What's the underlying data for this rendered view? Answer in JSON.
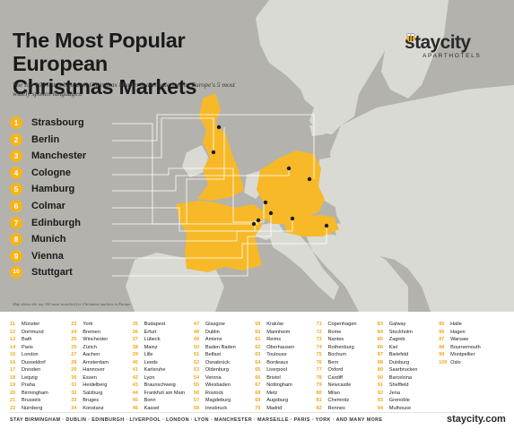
{
  "title_lines": [
    "The Most Popular European",
    "Christmas Markets"
  ],
  "subtitle": "The top 100 list is based on Christmas Market search queries for Europe's 5 most widely spoken languages.",
  "brand": {
    "name": "staycity",
    "tagline": "APARTHOTELS",
    "website": "staycity.com"
  },
  "colors": {
    "accent": "#f6b41c",
    "highlight_country": "#f7b928",
    "land": "#dadad5",
    "sea": "#b3b2ad"
  },
  "top10": [
    {
      "rank": "1",
      "name": "Strasbourg"
    },
    {
      "rank": "2",
      "name": "Berlin"
    },
    {
      "rank": "3",
      "name": "Manchester"
    },
    {
      "rank": "4",
      "name": "Cologne"
    },
    {
      "rank": "5",
      "name": "Hamburg"
    },
    {
      "rank": "6",
      "name": "Colmar"
    },
    {
      "rank": "7",
      "name": "Edinburgh"
    },
    {
      "rank": "8",
      "name": "Munich"
    },
    {
      "rank": "9",
      "name": "Vienna"
    },
    {
      "rank": "10",
      "name": "Stuttgart"
    }
  ],
  "map_note": "Map shows the top 100 most searched for Christmas markets in Europe",
  "map_marker_icon": "city-marker-dot",
  "highlighted_countries": [
    "United Kingdom",
    "France",
    "Germany",
    "Austria"
  ],
  "more_markets": [
    [
      "11",
      "Münster"
    ],
    [
      "12",
      "Dortmund"
    ],
    [
      "13",
      "Bath"
    ],
    [
      "14",
      "Paris"
    ],
    [
      "15",
      "London"
    ],
    [
      "16",
      "Dusseldorf"
    ],
    [
      "17",
      "Dresden"
    ],
    [
      "18",
      "Leipzig"
    ],
    [
      "19",
      "Praha"
    ],
    [
      "20",
      "Birmingham"
    ],
    [
      "21",
      "Brussels"
    ],
    [
      "22",
      "Nürnberg"
    ],
    [
      "23",
      "York"
    ],
    [
      "24",
      "Bremen"
    ],
    [
      "25",
      "Winchester"
    ],
    [
      "26",
      "Zürich"
    ],
    [
      "27",
      "Aachen"
    ],
    [
      "28",
      "Amsterdam"
    ],
    [
      "29",
      "Hannover"
    ],
    [
      "30",
      "Essen"
    ],
    [
      "31",
      "Heidelberg"
    ],
    [
      "32",
      "Salzburg"
    ],
    [
      "33",
      "Bruges"
    ],
    [
      "34",
      "Konstanz"
    ],
    [
      "35",
      "Budapest"
    ],
    [
      "36",
      "Erfurt"
    ],
    [
      "37",
      "Lübeck"
    ],
    [
      "38",
      "Mainz"
    ],
    [
      "39",
      "Lille"
    ],
    [
      "40",
      "Leeds"
    ],
    [
      "41",
      "Karlsruhe"
    ],
    [
      "42",
      "Lyon"
    ],
    [
      "43",
      "Braunschweig"
    ],
    [
      "44",
      "Frankfurt am Main"
    ],
    [
      "45",
      "Bonn"
    ],
    [
      "46",
      "Kassel"
    ],
    [
      "47",
      "Glasgow"
    ],
    [
      "48",
      "Dublin"
    ],
    [
      "49",
      "Amiens"
    ],
    [
      "50",
      "Baden Baden"
    ],
    [
      "51",
      "Belfast"
    ],
    [
      "52",
      "Osnabrück"
    ],
    [
      "53",
      "Oldenburg"
    ],
    [
      "54",
      "Verona"
    ],
    [
      "55",
      "Wiesbaden"
    ],
    [
      "56",
      "Rostock"
    ],
    [
      "57",
      "Magdeburg"
    ],
    [
      "58",
      "Innsbruck"
    ],
    [
      "59",
      "Kraków"
    ],
    [
      "60",
      "Mannheim"
    ],
    [
      "61",
      "Reims"
    ],
    [
      "62",
      "Oberhausen"
    ],
    [
      "63",
      "Toulouse"
    ],
    [
      "64",
      "Bordeaux"
    ],
    [
      "65",
      "Liverpool"
    ],
    [
      "66",
      "Bristol"
    ],
    [
      "67",
      "Nottingham"
    ],
    [
      "68",
      "Metz"
    ],
    [
      "69",
      "Augsburg"
    ],
    [
      "70",
      "Madrid"
    ],
    [
      "71",
      "Copenhagen"
    ],
    [
      "72",
      "Rome"
    ],
    [
      "73",
      "Nantes"
    ],
    [
      "74",
      "Rothenburg"
    ],
    [
      "75",
      "Bochum"
    ],
    [
      "76",
      "Bern"
    ],
    [
      "77",
      "Oxford"
    ],
    [
      "78",
      "Cardiff"
    ],
    [
      "79",
      "Newcastle"
    ],
    [
      "80",
      "Milan"
    ],
    [
      "81",
      "Chemnitz"
    ],
    [
      "82",
      "Rennes"
    ],
    [
      "83",
      "Galway"
    ],
    [
      "84",
      "Stockholm"
    ],
    [
      "85",
      "Zagreb"
    ],
    [
      "86",
      "Kiel"
    ],
    [
      "87",
      "Bielefeld"
    ],
    [
      "88",
      "Duisburg"
    ],
    [
      "89",
      "Saarbrucken"
    ],
    [
      "90",
      "Barcelona"
    ],
    [
      "91",
      "Sheffield"
    ],
    [
      "92",
      "Jena"
    ],
    [
      "93",
      "Grenoble"
    ],
    [
      "94",
      "Mulhouse"
    ],
    [
      "95",
      "Halle"
    ],
    [
      "96",
      "Hagen"
    ],
    [
      "97",
      "Warsaw"
    ],
    [
      "98",
      "Bournemouth"
    ],
    [
      "99",
      "Montpellier"
    ],
    [
      "100",
      "Oslo"
    ]
  ],
  "footer_text": "STAY BIRMINGHAM  ·  DUBLIN  ·  EDINBURGH  ·  LIVERPOOL  ·  LONDON  ·  LYON  ·  MANCHESTER  ·  MARSEILLE  ·  PARIS  ·  YORK  ·  AND MANY MORE"
}
